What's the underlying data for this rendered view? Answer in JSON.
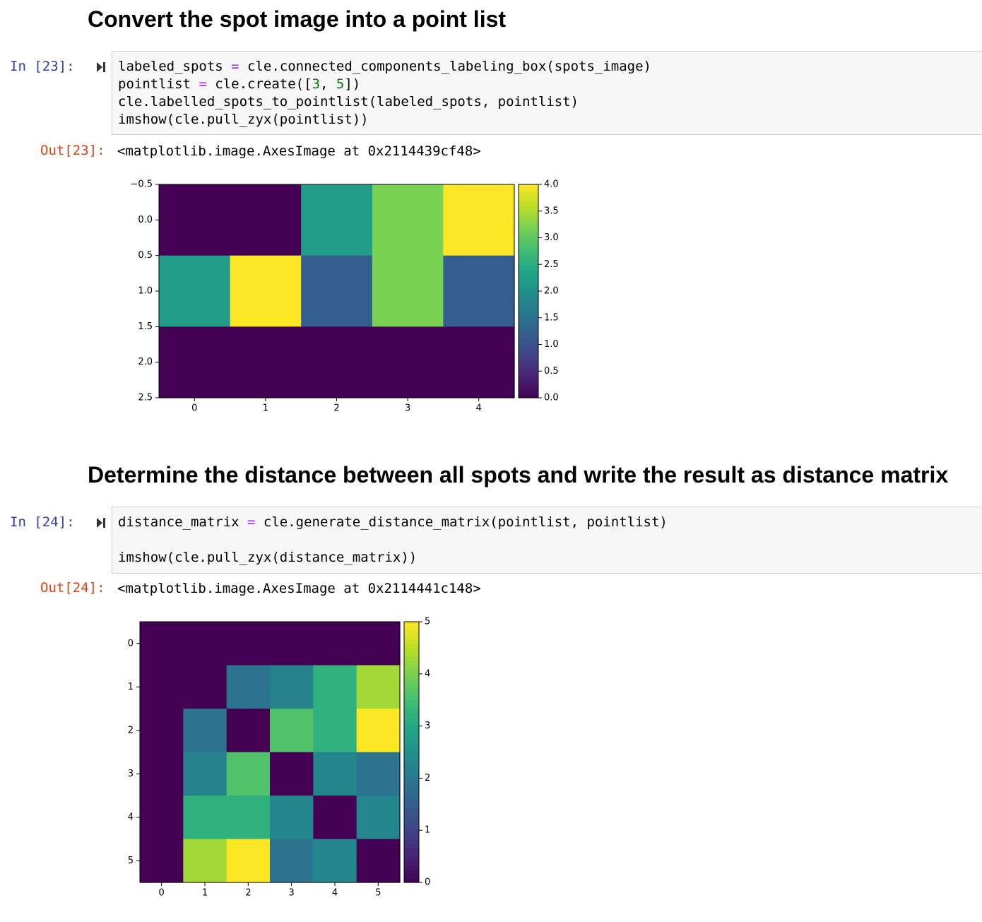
{
  "section1": {
    "heading": "Convert the spot image into a point list",
    "in_prompt": "In [23]:",
    "code_lines": [
      "labeled_spots = cle.connected_components_labeling_box(spots_image)",
      "pointlist = cle.create([3, 5])",
      "cle.labelled_spots_to_pointlist(labeled_spots, pointlist)",
      "imshow(cle.pull_zyx(pointlist))"
    ],
    "out_prompt": "Out[23]:",
    "out_text": "<matplotlib.image.AxesImage at 0x2114439cf48>"
  },
  "section2": {
    "heading": "Determine the distance between all spots and write the result as distance matrix",
    "in_prompt": "In [24]:",
    "code_lines": [
      "distance_matrix = cle.generate_distance_matrix(pointlist, pointlist)",
      "",
      "imshow(cle.pull_zyx(distance_matrix))"
    ],
    "out_prompt": "Out[24]:",
    "out_text": "<matplotlib.image.AxesImage at 0x2114441c148>"
  },
  "icons": {
    "run": "run-cell-icon"
  },
  "colors": {
    "in_prompt": "#303f9f",
    "out_prompt": "#d84315",
    "cell_bg": "#f7f7f7"
  },
  "chart_data": [
    {
      "type": "heatmap",
      "colormap": "viridis",
      "values": [
        [
          0,
          0,
          2.2,
          3.2,
          4.0
        ],
        [
          2.2,
          4.0,
          1.2,
          3.2,
          1.2
        ],
        [
          0,
          0,
          0,
          0,
          0
        ]
      ],
      "xticks": [
        "0",
        "1",
        "2",
        "3",
        "4"
      ],
      "yticks": [
        "−0.5",
        "0.0",
        "0.5",
        "1.0",
        "1.5",
        "2.0",
        "2.5"
      ],
      "ylim": [
        2.5,
        -0.5
      ],
      "colorbar": {
        "min": 0,
        "max": 4.0,
        "ticks": [
          "0.0",
          "0.5",
          "1.0",
          "1.5",
          "2.0",
          "2.5",
          "3.0",
          "3.5",
          "4.0"
        ]
      }
    },
    {
      "type": "heatmap",
      "colormap": "viridis",
      "values": [
        [
          0,
          0,
          0,
          0,
          0,
          0
        ],
        [
          0,
          0,
          1.9,
          2.2,
          3.2,
          4.3
        ],
        [
          0,
          1.9,
          0,
          3.6,
          3.2,
          5.0
        ],
        [
          0,
          2.2,
          3.6,
          0,
          2.3,
          1.9
        ],
        [
          0,
          3.2,
          3.2,
          2.3,
          0,
          2.3
        ],
        [
          0,
          4.3,
          5.0,
          1.9,
          2.3,
          0
        ]
      ],
      "xticks": [
        "0",
        "1",
        "2",
        "3",
        "4",
        "5"
      ],
      "yticks": [
        "0",
        "1",
        "2",
        "3",
        "4",
        "5"
      ],
      "colorbar": {
        "min": 0,
        "max": 5,
        "ticks": [
          "0",
          "1",
          "2",
          "3",
          "4",
          "5"
        ]
      }
    }
  ]
}
